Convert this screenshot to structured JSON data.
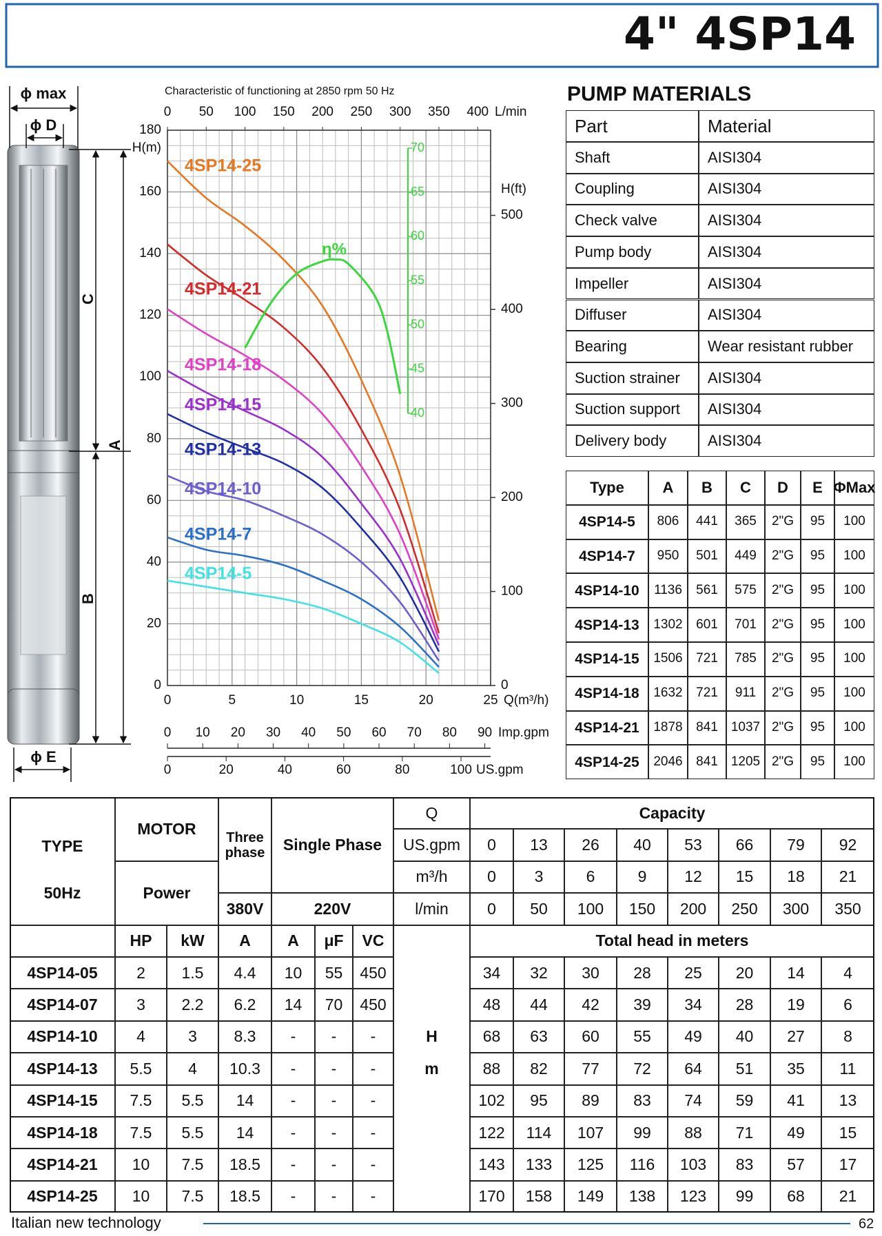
{
  "header": {
    "title": "4\" 4SP14"
  },
  "dimension_labels": {
    "phi_max": "ϕ max",
    "phi_d": "ϕ D",
    "c": "C",
    "a": "A",
    "b": "B",
    "phi_e": "ϕ E"
  },
  "chart_data": {
    "type": "line",
    "title": "Characteristic of  functioning at 2850 rpm 50 Hz",
    "x_label": "Q(m³/h)",
    "y_label": "H(m)",
    "x": [
      0,
      3,
      6,
      9,
      12,
      15,
      18,
      21
    ],
    "xlim": [
      0,
      25
    ],
    "xticks": [
      0,
      5,
      10,
      15,
      20,
      25
    ],
    "ylim": [
      0,
      180
    ],
    "yticks": [
      0,
      20,
      40,
      60,
      80,
      100,
      120,
      140,
      160,
      180
    ],
    "grid": true,
    "y2_label": "H(ft)",
    "y2lim": [
      0,
      590.55
    ],
    "y2ticks": [
      0,
      100,
      200,
      300,
      400,
      500
    ],
    "top_axis": {
      "label": "L/min",
      "lim": [
        0,
        416.67
      ],
      "ticks": [
        0,
        50,
        100,
        150,
        200,
        250,
        300,
        350,
        400
      ]
    },
    "imp_axis": {
      "label": "Imp.gpm",
      "lim": [
        0,
        91.65
      ],
      "ticks": [
        0,
        10,
        20,
        30,
        40,
        50,
        60,
        70,
        80,
        90
      ]
    },
    "us_axis": {
      "label": "US.gpm",
      "lim": [
        0,
        110.08
      ],
      "ticks": [
        0,
        20,
        40,
        60,
        80,
        100
      ]
    },
    "series": [
      {
        "name": "4SP14-5",
        "color": "#3fe3e3",
        "values": [
          34,
          32,
          30,
          28,
          25,
          20,
          14,
          4
        ]
      },
      {
        "name": "4SP14-7",
        "color": "#2a6fc9",
        "values": [
          48,
          44,
          42,
          39,
          34,
          28,
          19,
          6
        ]
      },
      {
        "name": "4SP14-10",
        "color": "#6b5fd0",
        "values": [
          68,
          63,
          60,
          55,
          49,
          40,
          27,
          8
        ]
      },
      {
        "name": "4SP14-13",
        "color": "#1f2fa8",
        "values": [
          88,
          82,
          77,
          72,
          64,
          51,
          35,
          11
        ]
      },
      {
        "name": "4SP14-15",
        "color": "#9b30d0",
        "values": [
          102,
          95,
          89,
          83,
          74,
          59,
          41,
          13
        ]
      },
      {
        "name": "4SP14-18",
        "color": "#e040c8",
        "values": [
          122,
          114,
          107,
          99,
          88,
          71,
          49,
          15
        ]
      },
      {
        "name": "4SP14-21",
        "color": "#d42a2a",
        "values": [
          143,
          133,
          125,
          116,
          103,
          83,
          57,
          17
        ]
      },
      {
        "name": "4SP14-25",
        "color": "#e87722",
        "values": [
          170,
          158,
          149,
          138,
          123,
          99,
          68,
          21
        ]
      }
    ],
    "efficiency": {
      "name": "η%",
      "color": "#3ad83a",
      "x": [
        6,
        8,
        10,
        12,
        13,
        14,
        16,
        17,
        18
      ],
      "values": [
        47.4,
        52.5,
        55.8,
        57.2,
        57.4,
        56.9,
        53.4,
        49.3,
        42.2
      ],
      "lim": [
        40,
        70
      ],
      "ticks": [
        40,
        45,
        50,
        55,
        60,
        65,
        70
      ]
    }
  },
  "materials": {
    "title": "PUMP MATERIALS",
    "header": [
      "Part",
      "Material"
    ],
    "rows": [
      [
        "Shaft",
        "AISI304"
      ],
      [
        "Coupling",
        "AISI304"
      ],
      [
        "Check valve",
        "AISI304"
      ],
      [
        "Pump body",
        "AISI304"
      ],
      [
        "Impeller",
        "AISI304"
      ],
      [
        "Diffuser",
        "AISI304"
      ],
      [
        "Bearing",
        "Wear resistant rubber"
      ],
      [
        "Suction strainer",
        "AISI304"
      ],
      [
        "Suction support",
        "AISI304"
      ],
      [
        "Delivery body",
        "AISI304"
      ]
    ]
  },
  "dimensions": {
    "header": [
      "Type",
      "A",
      "B",
      "C",
      "D",
      "E",
      "ΦMax"
    ],
    "rows": [
      [
        "4SP14-5",
        806,
        441,
        365,
        "2\"G",
        95,
        100
      ],
      [
        "4SP14-7",
        950,
        501,
        449,
        "2\"G",
        95,
        100
      ],
      [
        "4SP14-10",
        1136,
        561,
        575,
        "2\"G",
        95,
        100
      ],
      [
        "4SP14-13",
        1302,
        601,
        701,
        "2\"G",
        95,
        100
      ],
      [
        "4SP14-15",
        1506,
        721,
        785,
        "2\"G",
        95,
        100
      ],
      [
        "4SP14-18",
        1632,
        721,
        911,
        "2\"G",
        95,
        100
      ],
      [
        "4SP14-21",
        1878,
        841,
        1037,
        "2\"G",
        95,
        100
      ],
      [
        "4SP14-25",
        2046,
        841,
        1205,
        "2\"G",
        95,
        100
      ]
    ]
  },
  "performance": {
    "type_header": "TYPE",
    "freq": "50Hz",
    "motor": "MOTOR",
    "power": "Power",
    "three_phase": "Three phase",
    "single_phase": "Single Phase",
    "v380": "380V",
    "v220": "220V",
    "q": "Q",
    "flow_units": [
      "US.gpm",
      "m³/h",
      "l/min"
    ],
    "capacity": "Capacity",
    "us_gpm": [
      0,
      13,
      26,
      40,
      53,
      66,
      79,
      92
    ],
    "l_min": [
      0,
      50,
      100,
      150,
      200,
      250,
      300,
      350
    ],
    "columns": [
      "HP",
      "kW",
      "A",
      "A",
      "μF",
      "VC"
    ],
    "head_title": "Total head in meters",
    "h": "H",
    "m": "m",
    "rows": [
      [
        "4SP14-05",
        2,
        1.5,
        4.4,
        10,
        55,
        450
      ],
      [
        "4SP14-07",
        3,
        2.2,
        6.2,
        14,
        70,
        450
      ],
      [
        "4SP14-10",
        4,
        3,
        8.3,
        "-",
        "-",
        "-"
      ],
      [
        "4SP14-13",
        5.5,
        4,
        10.3,
        "-",
        "-",
        "-"
      ],
      [
        "4SP14-15",
        7.5,
        5.5,
        14,
        "-",
        "-",
        "-"
      ],
      [
        "4SP14-18",
        7.5,
        5.5,
        14,
        "-",
        "-",
        "-"
      ],
      [
        "4SP14-21",
        10,
        7.5,
        18.5,
        "-",
        "-",
        "-"
      ],
      [
        "4SP14-25",
        10,
        7.5,
        18.5,
        "-",
        "-",
        "-"
      ]
    ]
  },
  "footer": {
    "left": "Italian new technology",
    "page": 62
  }
}
